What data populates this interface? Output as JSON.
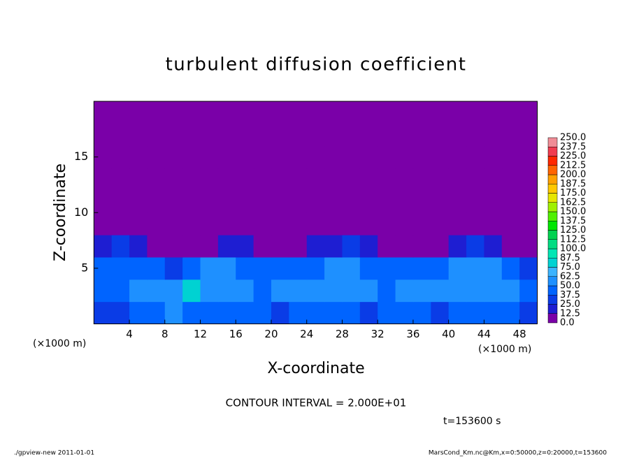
{
  "chart_data": {
    "type": "heatmap",
    "title": "turbulent diffusion coefficient",
    "x_label": "X-coordinate",
    "y_label": "Z-coordinate",
    "x_unit_left": "(×1000 m)",
    "x_unit_right": "(×1000 m)",
    "note": "CONTOUR INTERVAL = 2.000E+01",
    "time_label": "t=153600 s",
    "footer_left": "./gpview-new  2011-01-01",
    "footer_right": "MarsCond_Km.nc@Km,x=0:50000,z=0:20000,t=153600",
    "xlim": [
      0,
      50
    ],
    "ylim": [
      0,
      20
    ],
    "xticks": [
      4,
      8,
      12,
      16,
      20,
      24,
      28,
      32,
      36,
      40,
      44,
      48
    ],
    "yticks": [
      5,
      10,
      15
    ],
    "x": [
      1,
      3,
      5,
      7,
      9,
      11,
      13,
      15,
      17,
      19,
      21,
      23,
      25,
      27,
      29,
      31,
      33,
      35,
      37,
      39,
      41,
      43,
      45,
      47,
      49
    ],
    "y": [
      1,
      3,
      5,
      7,
      9,
      11,
      13,
      15,
      17,
      19
    ],
    "values": [
      [
        30,
        28,
        40,
        45,
        50,
        48,
        42,
        38,
        44,
        40,
        35,
        38,
        45,
        42,
        40,
        36,
        40,
        44,
        38,
        35,
        40,
        45,
        42,
        38,
        30
      ],
      [
        45,
        48,
        52,
        58,
        60,
        78,
        50,
        55,
        62,
        48,
        55,
        60,
        58,
        50,
        55,
        62,
        45,
        55,
        60,
        52,
        58,
        62,
        55,
        50,
        40
      ],
      [
        45,
        40,
        42,
        48,
        35,
        40,
        50,
        55,
        48,
        40,
        38,
        45,
        48,
        50,
        52,
        48,
        45,
        42,
        40,
        45,
        52,
        55,
        50,
        42,
        35
      ],
      [
        20,
        25,
        15,
        10,
        8,
        10,
        12,
        22,
        20,
        10,
        8,
        10,
        15,
        22,
        25,
        18,
        10,
        8,
        10,
        12,
        20,
        25,
        15,
        8,
        5
      ],
      [
        2,
        2,
        2,
        2,
        2,
        2,
        2,
        2,
        2,
        2,
        2,
        2,
        2,
        2,
        2,
        2,
        2,
        2,
        2,
        2,
        2,
        2,
        2,
        2,
        2
      ],
      [
        2,
        2,
        2,
        2,
        2,
        2,
        2,
        2,
        2,
        2,
        2,
        2,
        2,
        2,
        2,
        2,
        2,
        2,
        2,
        2,
        2,
        2,
        2,
        2,
        2
      ],
      [
        2,
        2,
        2,
        2,
        2,
        2,
        2,
        2,
        2,
        2,
        2,
        2,
        2,
        2,
        2,
        2,
        2,
        2,
        2,
        2,
        2,
        2,
        2,
        2,
        2
      ],
      [
        2,
        2,
        2,
        2,
        2,
        2,
        2,
        2,
        2,
        2,
        2,
        2,
        2,
        2,
        2,
        2,
        2,
        2,
        2,
        2,
        2,
        2,
        2,
        2,
        2
      ],
      [
        2,
        2,
        2,
        2,
        2,
        2,
        2,
        2,
        2,
        2,
        2,
        2,
        2,
        2,
        2,
        2,
        2,
        2,
        2,
        2,
        2,
        2,
        2,
        2,
        2
      ],
      [
        2,
        2,
        2,
        2,
        2,
        2,
        2,
        2,
        2,
        2,
        2,
        2,
        2,
        2,
        2,
        2,
        2,
        2,
        2,
        2,
        2,
        2,
        2,
        2,
        2
      ]
    ],
    "colorbar": {
      "levels": [
        {
          "value": 0,
          "label": "0.0"
        },
        {
          "value": 12.5,
          "label": "12.5"
        },
        {
          "value": 25,
          "label": "25.0"
        },
        {
          "value": 37.5,
          "label": "37.5"
        },
        {
          "value": 50,
          "label": "50.0"
        },
        {
          "value": 62.5,
          "label": "62.5"
        },
        {
          "value": 75,
          "label": "75.0"
        },
        {
          "value": 87.5,
          "label": "87.5"
        },
        {
          "value": 100,
          "label": "100.0"
        },
        {
          "value": 112.5,
          "label": "112.5"
        },
        {
          "value": 125,
          "label": "125.0"
        },
        {
          "value": 137.5,
          "label": "137.5"
        },
        {
          "value": 150,
          "label": "150.0"
        },
        {
          "value": 162.5,
          "label": "162.5"
        },
        {
          "value": 175,
          "label": "175.0"
        },
        {
          "value": 187.5,
          "label": "187.5"
        },
        {
          "value": 200,
          "label": "200.0"
        },
        {
          "value": 212.5,
          "label": "212.5"
        },
        {
          "value": 225,
          "label": "225.0"
        },
        {
          "value": 237.5,
          "label": "237.5"
        },
        {
          "value": 250,
          "label": "250.0"
        }
      ],
      "colors": [
        "#7a00a8",
        "#1e1ed2",
        "#0a3ce6",
        "#0064ff",
        "#1e90ff",
        "#3cb4ff",
        "#00d2d2",
        "#00e6b4",
        "#00dc82",
        "#00d250",
        "#00e600",
        "#50f000",
        "#a0f000",
        "#e6e600",
        "#ffc800",
        "#ffa000",
        "#ff6400",
        "#ff2800",
        "#f03c50",
        "#f08c96"
      ]
    }
  }
}
